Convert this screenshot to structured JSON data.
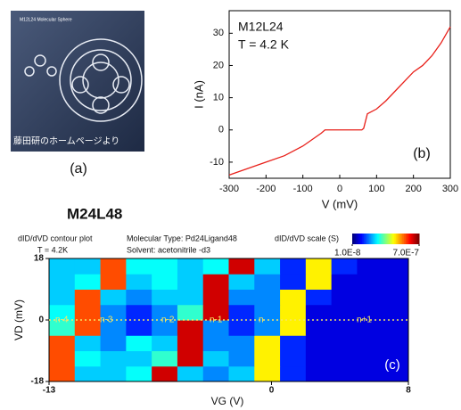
{
  "panel_a": {
    "caption": "M12L24 Molecular Sphere",
    "credit": "藤田研のホームページより",
    "panel_label": "(a)"
  },
  "chart_data": [
    {
      "type": "line",
      "panel_label": "(b)",
      "annotations": [
        "M12L24",
        "T = 4.2 K"
      ],
      "x_label": "V (mV)",
      "y_label": "I (nA)",
      "x": [
        -300,
        -250,
        -200,
        -150,
        -100,
        -50,
        -40,
        0,
        60,
        65,
        75,
        100,
        125,
        150,
        200,
        225,
        250,
        275,
        300
      ],
      "values": [
        -14,
        -12,
        -10,
        -8,
        -5,
        -1,
        0,
        0,
        0,
        0.5,
        5,
        6.5,
        9,
        12,
        18,
        20,
        23,
        27,
        32
      ],
      "color": "#e8201a",
      "xlim": [
        -300,
        300
      ],
      "ylim": [
        -15,
        37
      ],
      "xticks": [
        -300,
        -200,
        -100,
        0,
        100,
        200,
        300
      ],
      "yticks": [
        -10,
        0,
        10,
        20,
        30
      ]
    },
    {
      "type": "heatmap",
      "title": "M24L48",
      "panel_label": "(c)",
      "annotations": [
        "dID/dVD contour plot",
        "T = 4.2K",
        "Molecular Type: Pd24Ligand48",
        "Solvent: acetonitrile -d3"
      ],
      "colorbar_label": "dID/dVD scale (S)",
      "colorbar_ticks": [
        {
          "value": 1e-08,
          "label": "1.0E-8"
        },
        {
          "value": 7e-07,
          "label": "7.0E-7"
        }
      ],
      "colormap": "jet",
      "log_color_scale": true,
      "x_label": "VG (V)",
      "y_label": "VD (mV)",
      "xbins": [
        -13,
        -11.5,
        -10,
        -8.5,
        -7,
        -5.5,
        -4,
        -2.5,
        -1,
        0.5,
        2,
        3.5,
        5,
        6.5,
        8
      ],
      "ybins": [
        -18,
        -13.5,
        -9,
        -4.5,
        0,
        4.5,
        9,
        13.5,
        18
      ],
      "values": [
        [
          3e-07,
          4e-08,
          4e-08,
          5e-08,
          5e-07,
          4e-08,
          3e-08,
          4e-08,
          1.5e-07,
          2e-08,
          1.5e-08,
          1.5e-08,
          1.5e-08,
          1.5e-08
        ],
        [
          3e-07,
          5e-08,
          4e-08,
          4e-08,
          6e-08,
          5e-07,
          4e-08,
          3e-08,
          1.5e-07,
          2e-08,
          1.5e-08,
          1.5e-08,
          1.5e-08,
          1.5e-08
        ],
        [
          3e-07,
          4e-08,
          3e-08,
          5e-08,
          4e-08,
          5e-07,
          3e-08,
          3e-08,
          1.5e-07,
          2e-08,
          1.5e-08,
          1.5e-08,
          1.5e-08,
          1.5e-08
        ],
        [
          6e-08,
          3e-07,
          3e-08,
          2e-08,
          3e-08,
          5e-07,
          3e-08,
          2e-08,
          3e-08,
          1.5e-07,
          1.5e-08,
          1.5e-08,
          1.5e-08,
          1.5e-08
        ],
        [
          5e-08,
          3e-07,
          3e-08,
          2e-08,
          3e-08,
          6e-08,
          5e-07,
          2e-08,
          3e-08,
          1.5e-07,
          1.5e-08,
          1.5e-08,
          1.5e-08,
          1.5e-08
        ],
        [
          4e-08,
          3e-07,
          4e-08,
          3e-08,
          4e-08,
          4e-08,
          5e-07,
          3e-08,
          3e-08,
          1.5e-07,
          2e-08,
          1.5e-08,
          1.5e-08,
          1.5e-08
        ],
        [
          4e-08,
          5e-08,
          3e-07,
          4e-08,
          5e-08,
          4e-08,
          5e-07,
          4e-08,
          3e-08,
          2e-08,
          1.5e-07,
          1.5e-08,
          1.5e-08,
          1.5e-08
        ],
        [
          4e-08,
          4e-08,
          3e-07,
          5e-08,
          5e-08,
          4e-08,
          5e-08,
          5e-07,
          4e-08,
          2e-08,
          1.5e-07,
          2e-08,
          1.5e-08,
          1.5e-08
        ]
      ],
      "xlim": [
        -13,
        8
      ],
      "ylim": [
        -18,
        18
      ],
      "xticks": [
        -13,
        0,
        8
      ],
      "yticks": [
        -18,
        0,
        18
      ],
      "charge_state_labels": [
        "n-4",
        "n-3",
        "n-2",
        "n-1",
        "n",
        "n+1"
      ]
    }
  ]
}
